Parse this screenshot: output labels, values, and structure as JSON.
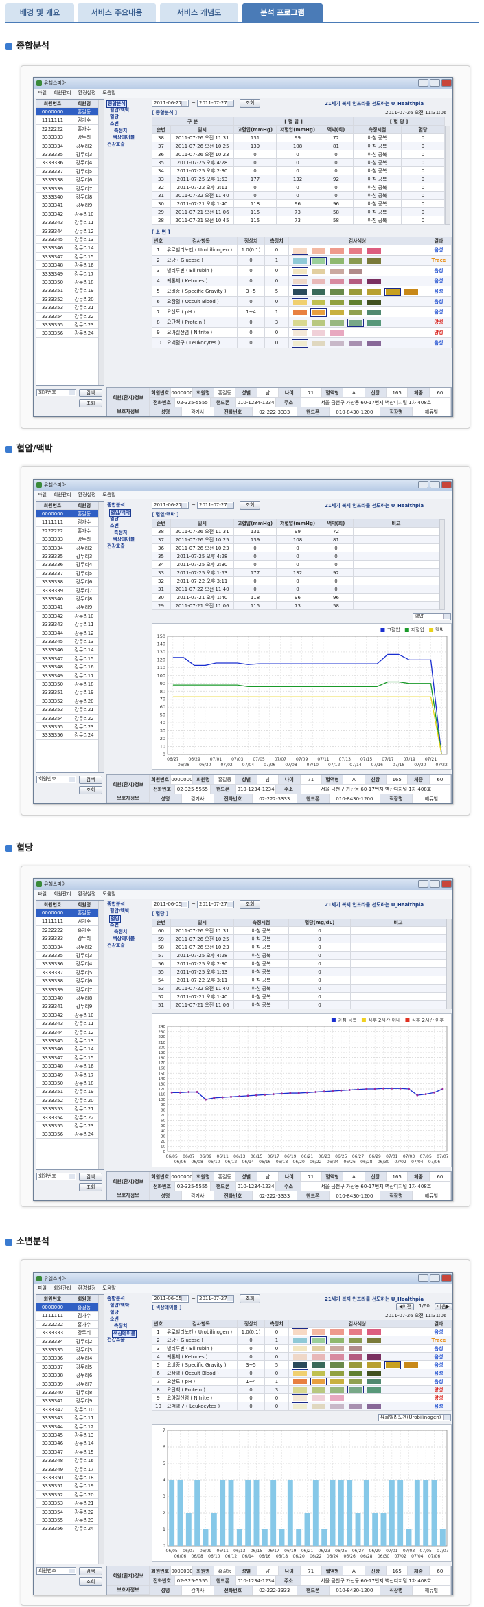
{
  "tabs": [
    "배경 및 개요",
    "서비스 주요내용",
    "서비스 개념도",
    "분석 프로그램"
  ],
  "app": {
    "title": "유헬스피아",
    "menu": [
      "파일",
      "회원관리",
      "환경설정",
      "도움말"
    ],
    "list_header": [
      "회원번호",
      "회원명"
    ],
    "members": [
      [
        "0000000",
        "홍길동"
      ],
      [
        "1111111",
        "김가수"
      ],
      [
        "2222222",
        "홍가수"
      ],
      [
        "3333333",
        "강두리"
      ],
      [
        "3333334",
        "강두리2"
      ],
      [
        "3333335",
        "강두리3"
      ],
      [
        "3333336",
        "강두리4"
      ],
      [
        "3333337",
        "강두리5"
      ],
      [
        "3333338",
        "강두리6"
      ],
      [
        "3333339",
        "강두리7"
      ],
      [
        "3333340",
        "강두리8"
      ],
      [
        "3333341",
        "강두리9"
      ],
      [
        "3333342",
        "강두리10"
      ],
      [
        "3333343",
        "강두리11"
      ],
      [
        "3333344",
        "강두리12"
      ],
      [
        "3333345",
        "강두리13"
      ],
      [
        "3333346",
        "강두리14"
      ],
      [
        "3333347",
        "강두리15"
      ],
      [
        "3333348",
        "강두리16"
      ],
      [
        "3333349",
        "강두리17"
      ],
      [
        "3333350",
        "강두리18"
      ],
      [
        "3333351",
        "강두리19"
      ],
      [
        "3333352",
        "강두리20"
      ],
      [
        "3333353",
        "강두리21"
      ],
      [
        "3333354",
        "강두리22"
      ],
      [
        "3333355",
        "강두리23"
      ],
      [
        "3333356",
        "강두리24"
      ]
    ],
    "tree": [
      "종합분석",
      "혈압/맥박",
      "혈당",
      "소변",
      "측정치",
      "색상테이블",
      "건강호출"
    ],
    "slogan": "21세기 복지 인프라를 선도하는 U_Healthpia",
    "search_field": "회원번호",
    "search_button": "검색",
    "query_button": "조회",
    "range_sep": "~",
    "info": {
      "member_label": "회원(환자)정보",
      "member_row1": [
        "회원번호",
        "0000000",
        "회원명",
        "홍길동",
        "성별",
        "남",
        "나이",
        71,
        "혈액형",
        "A",
        "신장",
        165,
        "체중",
        60
      ],
      "member_row2": [
        "전화번호",
        "02-325-5555",
        "핸드폰",
        "010-1234-1234",
        "주소",
        "서울 금천구 가산동 60-17번지 벽산디지털 1차 408호"
      ],
      "guardian_label": "보호자정보",
      "guardian_row": [
        "성명",
        "감기사",
        "전화번호",
        "02-222-3333",
        "핸드폰",
        "010-8430-1200",
        "직장명",
        "해듀빌"
      ]
    }
  },
  "sections": [
    {
      "heading": "종합분석",
      "date_from": "2011-06-27",
      "date_to": "2011-07-27",
      "panel_label": "[ 종합분석 ]",
      "timestamp": "2011-07-26 오전 11:31:06",
      "table": {
        "groups": [
          "구 분",
          "[ 혈 압 ]",
          "[ 혈 당 ]"
        ],
        "columns": [
          "순번",
          "일시",
          "고혈압(mmHg)",
          "저혈압(mmHg)",
          "맥박(회)",
          "측정시점",
          "혈당"
        ],
        "rows": [
          [
            38,
            "2011-07-26 오전 11:31",
            131,
            99,
            72,
            "아침 공복",
            0
          ],
          [
            37,
            "2011-07-26 오전 10:25",
            139,
            108,
            81,
            "아침 공복",
            0
          ],
          [
            36,
            "2011-07-26 오전 10:23",
            0,
            0,
            0,
            "아침 공복",
            0
          ],
          [
            35,
            "2011-07-25 오후 4:28",
            0,
            0,
            0,
            "아침 공복",
            0
          ],
          [
            34,
            "2011-07-25 오후 2:30",
            0,
            0,
            0,
            "아침 공복",
            0
          ],
          [
            33,
            "2011-07-25 오후 1:53",
            177,
            132,
            92,
            "아침 공복",
            0
          ],
          [
            32,
            "2011-07-22 오후 3:11",
            0,
            0,
            0,
            "아침 공복",
            0
          ],
          [
            31,
            "2011-07-22 오전 11:40",
            0,
            0,
            0,
            "아침 공복",
            0
          ],
          [
            30,
            "2011-07-21 오후 1:40",
            118,
            96,
            96,
            "아침 공복",
            0
          ],
          [
            29,
            "2011-07-21 오전 11:06",
            115,
            73,
            58,
            "아침 공복",
            0
          ],
          [
            28,
            "2011-07-21 오전 10:45",
            115,
            73,
            58,
            "아침 공복",
            0
          ]
        ]
      },
      "urine": {
        "label": "[ 소 변 ]",
        "columns": [
          "번호",
          "검사항목",
          "정상치",
          "측정치",
          "검사색상",
          "결과"
        ],
        "rows": [
          [
            1,
            "유로빌리노겐 ( Urobilinogen )",
            "1.0(0.1)",
            0,
            "음성"
          ],
          [
            2,
            "요당 ( Glucose )",
            0,
            1,
            "Trace"
          ],
          [
            3,
            "빌리루빈 ( Bilirubin )",
            0,
            0,
            "음성"
          ],
          [
            4,
            "케톤체 ( Ketones )",
            0,
            0,
            "음성"
          ],
          [
            5,
            "요비중 ( Specific Gravity )",
            "3~5",
            5,
            "음성"
          ],
          [
            6,
            "요잠혈 ( Occult Blood )",
            0,
            0,
            "음성"
          ],
          [
            7,
            "요산도 ( pH )",
            "1~4",
            1,
            "음성"
          ],
          [
            8,
            "요단백 ( Protein )",
            0,
            3,
            "양성"
          ],
          [
            9,
            "요아질산염 ( Nitrite )",
            0,
            0,
            "양성"
          ],
          [
            10,
            "요백혈구 ( Leukocytes )",
            0,
            0,
            "음성"
          ]
        ],
        "result_colors": [
          "#1f4fd0",
          "#e8901a",
          "#1f4fd0",
          "#1f4fd0",
          "#1f4fd0",
          "#1f4fd0",
          "#1f4fd0",
          "#d8201a",
          "#d8201a",
          "#1f4fd0"
        ]
      }
    },
    {
      "heading": "혈압/맥박",
      "date_from": "2011-06-27",
      "date_to": "2011-07-27",
      "panel_label": "[ 혈압/맥박 ]",
      "table": {
        "columns": [
          "순번",
          "일시",
          "고혈압(mmHg)",
          "저혈압(mmHg)",
          "맥박(회)",
          "비고"
        ],
        "rows": [
          [
            38,
            "2011-07-26 오전 11:31",
            131,
            99,
            72
          ],
          [
            37,
            "2011-07-26 오전 10:25",
            139,
            108,
            81
          ],
          [
            36,
            "2011-07-26 오전 10:23",
            0,
            0,
            0
          ],
          [
            35,
            "2011-07-25 오후 4:28",
            0,
            0,
            0
          ],
          [
            34,
            "2011-07-25 오후 2:30",
            0,
            0,
            0
          ],
          [
            33,
            "2011-07-25 오후 1:53",
            177,
            132,
            92
          ],
          [
            32,
            "2011-07-22 오후 3:11",
            0,
            0,
            0
          ],
          [
            31,
            "2011-07-22 오전 11:40",
            0,
            0,
            0
          ],
          [
            30,
            "2011-07-21 오후 1:40",
            118,
            96,
            96
          ],
          [
            29,
            "2011-07-21 오전 11:06",
            115,
            73,
            58
          ]
        ]
      },
      "select": "혈압",
      "chart": {
        "type": "line",
        "categories": [
          "06/27",
          "06/28",
          "06/29",
          "06/30",
          "07/01",
          "07/02",
          "07/03",
          "07/04",
          "07/05",
          "07/06",
          "07/07",
          "07/08",
          "07/09",
          "07/10",
          "07/11",
          "07/12",
          "07/13",
          "07/14",
          "07/15",
          "07/16",
          "07/17",
          "07/18",
          "07/19",
          "07/20",
          "07/21",
          "07/22"
        ],
        "series": [
          {
            "name": "고혈압",
            "color": "#1a2fd0",
            "values": [
              123,
              123,
              113,
              113,
              116,
              116,
              116,
              114,
              115,
              115,
              115,
              115,
              115,
              115,
              115,
              115,
              115,
              115,
              115,
              115,
              127,
              127,
              120,
              120,
              120,
              0
            ]
          },
          {
            "name": "저혈압",
            "color": "#1a9a2a",
            "values": [
              88,
              88,
              88,
              88,
              88,
              88,
              88,
              86,
              86,
              86,
              86,
              86,
              86,
              86,
              86,
              86,
              86,
              86,
              86,
              86,
              92,
              92,
              90,
              90,
              90,
              0
            ]
          },
          {
            "name": "맥박",
            "color": "#e8d21a",
            "values": [
              73,
              73,
              73,
              73,
              73,
              73,
              73,
              73,
              73,
              73,
              73,
              73,
              73,
              73,
              73,
              73,
              73,
              73,
              73,
              73,
              73,
              73,
              73,
              73,
              73,
              0
            ]
          }
        ],
        "ylim": [
          0,
          150
        ],
        "yticks": [
          0,
          10,
          20,
          30,
          40,
          50,
          60,
          70,
          80,
          90,
          100,
          110,
          120,
          130,
          140,
          150
        ],
        "grid": true
      }
    },
    {
      "heading": "혈당",
      "date_from": "2011-06-05",
      "date_to": "2011-07-27",
      "panel_label": "[ 혈당 ]",
      "table": {
        "columns": [
          "순번",
          "일시",
          "측정시점",
          "혈당(mg/dL)",
          "비고"
        ],
        "rows": [
          [
            60,
            "2011-07-26 오전 11:31",
            "아침 공복",
            0
          ],
          [
            59,
            "2011-07-26 오전 10:25",
            "아침 공복",
            0
          ],
          [
            58,
            "2011-07-26 오전 10:23",
            "아침 공복",
            0
          ],
          [
            57,
            "2011-07-25 오후 4:28",
            "아침 공복",
            0
          ],
          [
            56,
            "2011-07-25 오후 2:30",
            "아침 공복",
            0
          ],
          [
            55,
            "2011-07-25 오후 1:53",
            "아침 공복",
            0
          ],
          [
            54,
            "2011-07-22 오후 3:11",
            "아침 공복",
            0
          ],
          [
            53,
            "2011-07-22 오전 11:40",
            "아침 공복",
            0
          ],
          [
            52,
            "2011-07-21 오후 1:40",
            "아침 공복",
            0
          ],
          [
            51,
            "2011-07-21 오전 11:06",
            "아침 공복",
            0
          ]
        ]
      },
      "chart": {
        "type": "line",
        "markers": true,
        "categories": [
          "06/05",
          "06/06",
          "06/07",
          "06/08",
          "06/09",
          "06/10",
          "06/11",
          "06/12",
          "06/13",
          "06/14",
          "06/15",
          "06/16",
          "06/17",
          "06/18",
          "06/19",
          "06/20",
          "06/21",
          "06/22",
          "06/23",
          "06/24",
          "06/25",
          "06/26",
          "06/27",
          "06/28",
          "06/29",
          "06/30",
          "07/01",
          "07/02",
          "07/03",
          "07/04",
          "07/05",
          "07/06",
          "07/07"
        ],
        "series": [
          {
            "name": "아침 공복",
            "color": "#1a2fd0",
            "values": [
              113,
              113,
              114,
              114,
              100,
              103,
              104,
              105,
              106,
              107,
              108,
              109,
              110,
              111,
              112,
              112,
              113,
              114,
              115,
              116,
              117,
              118,
              119,
              120,
              120,
              121,
              121,
              121,
              120,
              108,
              110,
              113,
              120
            ]
          },
          {
            "name": "식후 2시간 이내",
            "color": "#f0d020",
            "values": [
              null,
              null,
              null,
              null,
              null,
              null,
              null,
              null,
              null,
              null,
              null,
              null,
              null,
              null,
              null,
              null,
              null,
              null,
              null,
              null,
              null,
              null,
              null,
              null,
              null,
              null,
              null,
              null,
              null,
              null,
              null,
              null,
              null
            ]
          },
          {
            "name": "식후 2시간 이후",
            "color": "#e03020",
            "values": [
              null,
              null,
              null,
              null,
              null,
              null,
              null,
              null,
              null,
              null,
              null,
              null,
              null,
              null,
              null,
              null,
              null,
              null,
              null,
              null,
              null,
              null,
              null,
              null,
              null,
              null,
              null,
              null,
              null,
              null,
              null,
              null,
              null
            ]
          }
        ],
        "ylim": [
          0,
          240
        ],
        "yticks": [
          0,
          10,
          20,
          30,
          40,
          50,
          60,
          70,
          80,
          90,
          100,
          110,
          120,
          130,
          140,
          150,
          160,
          170,
          180,
          190,
          200,
          210,
          220,
          230,
          240
        ],
        "grid": true
      }
    },
    {
      "heading": "소변분석",
      "date_from": "2011-06-05",
      "date_to": "2011-07-27",
      "panel_label": "[ 색상테이블 ]",
      "pager": [
        "◀이전",
        "1/60",
        "다음▶"
      ],
      "select": "유로빌리노겐(Urobilinogen)",
      "chart": {
        "type": "bar",
        "categories": [
          "06/05",
          "06/06",
          "06/07",
          "06/08",
          "06/09",
          "06/10",
          "06/11",
          "06/12",
          "06/13",
          "06/14",
          "06/15",
          "06/16",
          "06/17",
          "06/18",
          "06/19",
          "06/20",
          "06/21",
          "06/22",
          "06/23",
          "06/24",
          "06/25",
          "06/26",
          "06/27",
          "06/28",
          "06/29",
          "06/30",
          "07/01",
          "07/02",
          "07/03",
          "07/04",
          "07/05",
          "07/06",
          "07/07"
        ],
        "values": [
          4,
          4,
          2,
          4,
          1,
          2,
          4,
          4,
          1,
          4,
          4,
          1,
          4,
          1,
          4,
          1,
          2,
          4,
          1,
          4,
          4,
          4,
          2,
          4,
          2,
          2,
          4,
          4,
          1,
          4,
          4,
          4,
          1
        ],
        "color": "#86c8e8",
        "ylim": [
          0,
          7
        ],
        "yticks": [
          0,
          1,
          2,
          3,
          4,
          5,
          6,
          7
        ],
        "grid": true
      }
    }
  ]
}
